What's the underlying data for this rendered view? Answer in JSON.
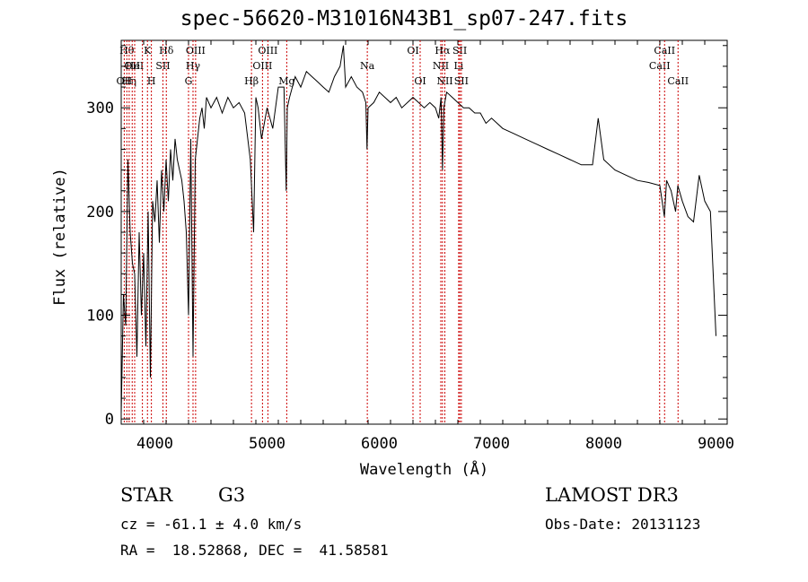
{
  "title": "spec-56620-M31016N43B1_sp07-247.fits",
  "info": {
    "class_label": "STAR",
    "subclass_label": "G3",
    "redshift": "cz = -61.1 ± 4.0 km/s",
    "coords": "RA =  18.52868, DEC =  41.58581",
    "survey": "LAMOST DR3",
    "obs_date": "Obs-Date: 20131123"
  },
  "chart_data": {
    "type": "line",
    "title": "spec-56620-M31016N43B1_sp07-247.fits",
    "xlabel": "Wavelength (Å)",
    "ylabel": "Flux (relative)",
    "xlim": [
      3700,
      9100
    ],
    "ylim": [
      -5,
      365
    ],
    "xticks": [
      4000,
      5000,
      6000,
      7000,
      8000,
      9000
    ],
    "yticks": [
      0,
      100,
      200,
      300
    ],
    "x_minor_step": 200,
    "y_minor_step": 20,
    "series": [
      {
        "name": "flux",
        "x": [
          3700,
          3720,
          3740,
          3760,
          3780,
          3800,
          3820,
          3840,
          3860,
          3880,
          3900,
          3920,
          3940,
          3960,
          3980,
          4000,
          4020,
          4040,
          4060,
          4080,
          4100,
          4120,
          4140,
          4160,
          4180,
          4200,
          4220,
          4240,
          4260,
          4280,
          4300,
          4320,
          4340,
          4360,
          4380,
          4400,
          4420,
          4440,
          4460,
          4480,
          4500,
          4550,
          4600,
          4650,
          4700,
          4750,
          4800,
          4850,
          4880,
          4900,
          4920,
          4950,
          5000,
          5050,
          5100,
          5150,
          5170,
          5180,
          5200,
          5250,
          5300,
          5350,
          5400,
          5450,
          5500,
          5550,
          5600,
          5650,
          5680,
          5700,
          5750,
          5800,
          5850,
          5880,
          5890,
          5900,
          5950,
          6000,
          6050,
          6100,
          6150,
          6200,
          6250,
          6300,
          6350,
          6400,
          6450,
          6500,
          6530,
          6550,
          6563,
          6575,
          6600,
          6650,
          6700,
          6750,
          6800,
          6850,
          6900,
          6950,
          7000,
          7100,
          7200,
          7300,
          7400,
          7500,
          7600,
          7700,
          7800,
          7900,
          7950,
          8000,
          8100,
          8200,
          8300,
          8400,
          8500,
          8540,
          8560,
          8600,
          8640,
          8660,
          8700,
          8750,
          8800,
          8850,
          8900,
          8950,
          9000
        ],
        "values": [
          5,
          120,
          90,
          250,
          180,
          150,
          140,
          60,
          180,
          100,
          160,
          70,
          200,
          40,
          210,
          190,
          230,
          170,
          240,
          200,
          250,
          210,
          260,
          230,
          270,
          250,
          240,
          230,
          210,
          180,
          100,
          270,
          60,
          250,
          270,
          290,
          300,
          280,
          310,
          305,
          300,
          310,
          295,
          310,
          300,
          305,
          295,
          250,
          180,
          310,
          300,
          270,
          300,
          280,
          320,
          320,
          220,
          300,
          310,
          330,
          320,
          335,
          330,
          325,
          320,
          315,
          330,
          340,
          360,
          320,
          330,
          320,
          315,
          305,
          260,
          300,
          305,
          315,
          310,
          305,
          310,
          300,
          305,
          310,
          305,
          300,
          305,
          300,
          290,
          310,
          240,
          300,
          315,
          310,
          305,
          300,
          300,
          295,
          295,
          285,
          290,
          280,
          275,
          270,
          265,
          260,
          255,
          250,
          245,
          245,
          290,
          250,
          240,
          235,
          230,
          228,
          225,
          195,
          230,
          220,
          200,
          225,
          210,
          195,
          190,
          235,
          210,
          200,
          80
        ]
      }
    ],
    "line_markers": [
      {
        "wl": 3727,
        "label": "OII",
        "row": 2
      },
      {
        "wl": 3750,
        "label": "Hθ",
        "row": 0
      },
      {
        "wl": 3771,
        "label": "Hη",
        "row": 2
      },
      {
        "wl": 3798,
        "label": "OII",
        "row": 1
      },
      {
        "wl": 3820,
        "label": "HeI",
        "row": 1
      },
      {
        "wl": 3889,
        "label": "",
        "row": 0
      },
      {
        "wl": 3934,
        "label": "K",
        "row": 0
      },
      {
        "wl": 3969,
        "label": "H",
        "row": 2
      },
      {
        "wl": 4072,
        "label": "SII",
        "row": 1
      },
      {
        "wl": 4102,
        "label": "Hδ",
        "row": 0
      },
      {
        "wl": 4300,
        "label": "G",
        "row": 2
      },
      {
        "wl": 4340,
        "label": "Hγ",
        "row": 1
      },
      {
        "wl": 4363,
        "label": "OIII",
        "row": 0
      },
      {
        "wl": 4861,
        "label": "Hβ",
        "row": 2
      },
      {
        "wl": 4959,
        "label": "OIII",
        "row": 1
      },
      {
        "wl": 5007,
        "label": "OIII",
        "row": 0
      },
      {
        "wl": 5175,
        "label": "Mg",
        "row": 2
      },
      {
        "wl": 5893,
        "label": "Na",
        "row": 1
      },
      {
        "wl": 6300,
        "label": "OI",
        "row": 0
      },
      {
        "wl": 6364,
        "label": "OI",
        "row": 2
      },
      {
        "wl": 6548,
        "label": "NII",
        "row": 1
      },
      {
        "wl": 6563,
        "label": "Hα",
        "row": 0
      },
      {
        "wl": 6584,
        "label": "NII",
        "row": 2
      },
      {
        "wl": 6707,
        "label": "Li",
        "row": 1
      },
      {
        "wl": 6717,
        "label": "SII",
        "row": 0
      },
      {
        "wl": 6731,
        "label": "SII",
        "row": 2
      },
      {
        "wl": 8498,
        "label": "CaII",
        "row": 1
      },
      {
        "wl": 8542,
        "label": "CaII",
        "row": 0
      },
      {
        "wl": 8662,
        "label": "CaII",
        "row": 2
      }
    ]
  }
}
